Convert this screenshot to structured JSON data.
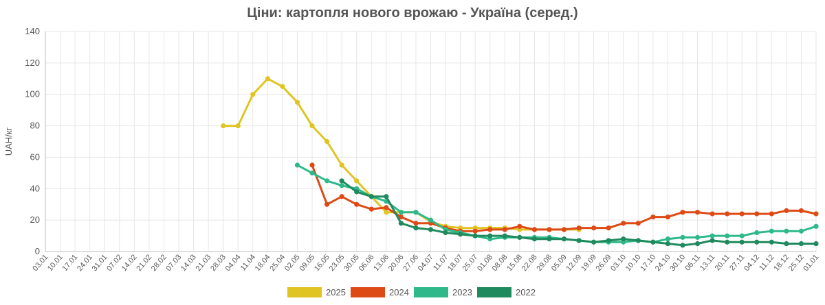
{
  "chart_data": {
    "type": "line",
    "title": "Ціни: картопля нового врожаю - Україна (серед.)",
    "xlabel": "",
    "ylabel": "UAH/кг",
    "ylim": [
      0,
      140
    ],
    "yticks": [
      0,
      20,
      40,
      60,
      80,
      100,
      120,
      140
    ],
    "grid": true,
    "legend_position": "bottom",
    "categories": [
      "03.01",
      "10.01",
      "17.01",
      "24.01",
      "31.01",
      "07.02",
      "14.02",
      "21.02",
      "28.02",
      "07.03",
      "14.03",
      "21.03",
      "28.03",
      "04.04",
      "11.04",
      "18.04",
      "25.04",
      "02.05",
      "09.05",
      "16.05",
      "23.05",
      "30.05",
      "06.06",
      "13.06",
      "20.06",
      "27.06",
      "04.07",
      "11.07",
      "18.07",
      "25.07",
      "01.08",
      "08.08",
      "15.08",
      "22.08",
      "29.08",
      "05.09",
      "12.09",
      "19.09",
      "26.09",
      "03.10",
      "10.10",
      "17.10",
      "24.10",
      "30.10",
      "06.11",
      "13.11",
      "20.11",
      "27.11",
      "04.12",
      "11.12",
      "18.12",
      "25.12",
      "01.01"
    ],
    "series": [
      {
        "name": "2025",
        "color": "#e0c423",
        "points": [
          [
            12,
            80
          ],
          [
            13,
            80
          ],
          [
            14,
            100
          ],
          [
            15,
            110
          ],
          [
            16,
            105
          ],
          [
            17,
            95
          ],
          [
            18,
            80
          ],
          [
            19,
            70
          ],
          [
            20,
            55
          ],
          [
            21,
            45
          ],
          [
            22,
            35
          ],
          [
            23,
            25
          ],
          [
            24,
            25
          ],
          [
            25,
            25
          ],
          [
            26,
            19
          ],
          [
            27,
            16
          ],
          [
            28,
            15
          ],
          [
            29,
            15
          ],
          [
            30,
            15
          ],
          [
            31,
            15
          ],
          [
            32,
            14
          ],
          [
            33,
            14
          ],
          [
            34,
            14
          ],
          [
            35,
            14
          ],
          [
            36,
            14
          ]
        ]
      },
      {
        "name": "2024",
        "color": "#dd4a15",
        "points": [
          [
            18,
            55
          ],
          [
            19,
            30
          ],
          [
            20,
            35
          ],
          [
            21,
            30
          ],
          [
            22,
            27
          ],
          [
            23,
            28
          ],
          [
            24,
            22
          ],
          [
            25,
            18
          ],
          [
            26,
            18
          ],
          [
            27,
            15
          ],
          [
            28,
            13
          ],
          [
            29,
            13
          ],
          [
            30,
            14
          ],
          [
            31,
            14
          ],
          [
            32,
            16
          ],
          [
            33,
            14
          ],
          [
            34,
            14
          ],
          [
            35,
            14
          ],
          [
            36,
            15
          ],
          [
            37,
            15
          ],
          [
            38,
            15
          ],
          [
            39,
            18
          ],
          [
            40,
            18
          ],
          [
            41,
            22
          ],
          [
            42,
            22
          ],
          [
            43,
            25
          ],
          [
            44,
            25
          ],
          [
            45,
            24
          ],
          [
            46,
            24
          ],
          [
            47,
            24
          ],
          [
            48,
            24
          ],
          [
            49,
            24
          ],
          [
            50,
            26
          ],
          [
            51,
            26
          ],
          [
            52,
            24
          ]
        ]
      },
      {
        "name": "2023",
        "color": "#2fb98a",
        "points": [
          [
            17,
            55
          ],
          [
            18,
            50
          ],
          [
            19,
            45
          ],
          [
            20,
            42
          ],
          [
            21,
            40
          ],
          [
            22,
            35
          ],
          [
            23,
            32
          ],
          [
            24,
            25
          ],
          [
            25,
            25
          ],
          [
            26,
            20
          ],
          [
            27,
            14
          ],
          [
            28,
            12
          ],
          [
            29,
            10
          ],
          [
            30,
            8
          ],
          [
            31,
            9
          ],
          [
            32,
            9
          ],
          [
            33,
            9
          ],
          [
            34,
            9
          ],
          [
            35,
            8
          ],
          [
            36,
            7
          ],
          [
            37,
            6
          ],
          [
            38,
            6
          ],
          [
            39,
            6
          ],
          [
            40,
            7
          ],
          [
            41,
            6
          ],
          [
            42,
            8
          ],
          [
            43,
            9
          ],
          [
            44,
            9
          ],
          [
            45,
            10
          ],
          [
            46,
            10
          ],
          [
            47,
            10
          ],
          [
            48,
            12
          ],
          [
            49,
            13
          ],
          [
            50,
            13
          ],
          [
            51,
            13
          ],
          [
            52,
            16
          ]
        ]
      },
      {
        "name": "2022",
        "color": "#1f8a5e",
        "points": [
          [
            20,
            45
          ],
          [
            21,
            38
          ],
          [
            22,
            35
          ],
          [
            23,
            35
          ],
          [
            24,
            18
          ],
          [
            25,
            15
          ],
          [
            26,
            14
          ],
          [
            27,
            12
          ],
          [
            28,
            11
          ],
          [
            29,
            10
          ],
          [
            30,
            10
          ],
          [
            31,
            10
          ],
          [
            32,
            9
          ],
          [
            33,
            8
          ],
          [
            34,
            8
          ],
          [
            35,
            8
          ],
          [
            36,
            7
          ],
          [
            37,
            6
          ],
          [
            38,
            7
          ],
          [
            39,
            8
          ],
          [
            40,
            7
          ],
          [
            41,
            6
          ],
          [
            42,
            5
          ],
          [
            43,
            4
          ],
          [
            44,
            5
          ],
          [
            45,
            7
          ],
          [
            46,
            6
          ],
          [
            47,
            6
          ],
          [
            48,
            6
          ],
          [
            49,
            6
          ],
          [
            50,
            5
          ],
          [
            51,
            5
          ],
          [
            52,
            5
          ]
        ]
      }
    ]
  }
}
